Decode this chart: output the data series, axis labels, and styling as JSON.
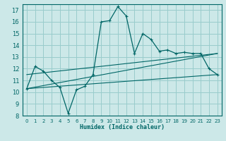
{
  "xlabel": "Humidex (Indice chaleur)",
  "bg_color": "#cce8e8",
  "grid_color": "#99cccc",
  "line_color": "#006666",
  "xlim": [
    -0.5,
    23.5
  ],
  "ylim": [
    8,
    17.5
  ],
  "xticks": [
    0,
    1,
    2,
    3,
    4,
    5,
    6,
    7,
    8,
    9,
    10,
    11,
    12,
    13,
    14,
    15,
    16,
    17,
    18,
    19,
    20,
    21,
    22,
    23
  ],
  "yticks": [
    8,
    9,
    10,
    11,
    12,
    13,
    14,
    15,
    16,
    17
  ],
  "humidex_curve": [
    10.3,
    12.2,
    11.8,
    11.0,
    10.4,
    8.2,
    10.2,
    10.5,
    11.5,
    16.0,
    16.1,
    17.3,
    16.5,
    13.3,
    15.0,
    14.5,
    13.5,
    13.6,
    13.3,
    13.4,
    13.3,
    13.3,
    12.0,
    11.5
  ],
  "line2_data": [
    [
      0,
      10.3
    ],
    [
      23,
      11.5
    ]
  ],
  "line3_data": [
    [
      0,
      10.3
    ],
    [
      23,
      13.3
    ]
  ],
  "line4_data": [
    [
      0,
      11.5
    ],
    [
      23,
      13.3
    ]
  ]
}
